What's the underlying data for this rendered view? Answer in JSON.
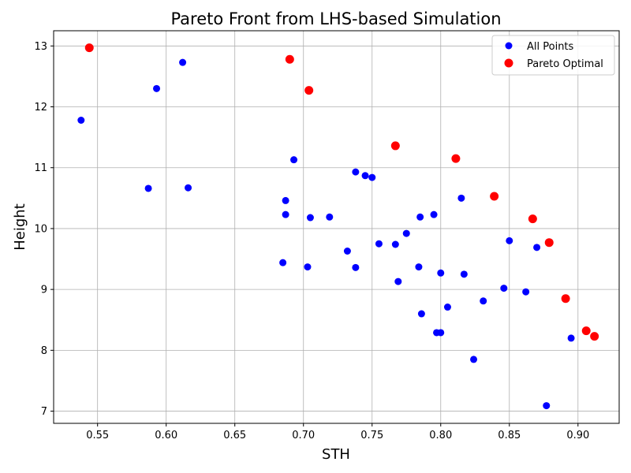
{
  "chart_data": {
    "type": "scatter",
    "title": "Pareto Front from LHS-based Simulation",
    "xlabel": "STH",
    "ylabel": "Height",
    "xlim": [
      0.518,
      0.93
    ],
    "ylim": [
      6.8,
      13.25
    ],
    "xticks": [
      0.55,
      0.6,
      0.65,
      0.7,
      0.75,
      0.8,
      0.85,
      0.9
    ],
    "xtick_labels": [
      "0.55",
      "0.60",
      "0.65",
      "0.70",
      "0.75",
      "0.80",
      "0.85",
      "0.90"
    ],
    "yticks": [
      7,
      8,
      9,
      10,
      11,
      12,
      13
    ],
    "ytick_labels": [
      "7",
      "8",
      "9",
      "10",
      "11",
      "12",
      "13"
    ],
    "grid": true,
    "legend_position": "top-right",
    "series": [
      {
        "name": "All Points",
        "color": "#0000ff",
        "points": [
          [
            0.538,
            11.78
          ],
          [
            0.593,
            12.3
          ],
          [
            0.612,
            12.73
          ],
          [
            0.587,
            10.66
          ],
          [
            0.616,
            10.67
          ],
          [
            0.693,
            11.13
          ],
          [
            0.687,
            10.46
          ],
          [
            0.687,
            10.23
          ],
          [
            0.685,
            9.44
          ],
          [
            0.703,
            9.37
          ],
          [
            0.705,
            10.18
          ],
          [
            0.719,
            10.19
          ],
          [
            0.732,
            9.63
          ],
          [
            0.738,
            9.36
          ],
          [
            0.738,
            10.93
          ],
          [
            0.745,
            10.87
          ],
          [
            0.75,
            10.84
          ],
          [
            0.755,
            9.75
          ],
          [
            0.767,
            9.74
          ],
          [
            0.769,
            9.13
          ],
          [
            0.775,
            9.92
          ],
          [
            0.784,
            9.37
          ],
          [
            0.785,
            10.19
          ],
          [
            0.786,
            8.6
          ],
          [
            0.795,
            10.23
          ],
          [
            0.797,
            8.29
          ],
          [
            0.8,
            9.27
          ],
          [
            0.8,
            8.29
          ],
          [
            0.805,
            8.71
          ],
          [
            0.815,
            10.5
          ],
          [
            0.817,
            9.25
          ],
          [
            0.824,
            7.85
          ],
          [
            0.831,
            8.81
          ],
          [
            0.846,
            9.02
          ],
          [
            0.85,
            9.8
          ],
          [
            0.862,
            8.96
          ],
          [
            0.87,
            9.69
          ],
          [
            0.877,
            7.09
          ],
          [
            0.895,
            8.2
          ]
        ]
      },
      {
        "name": "Pareto Optimal",
        "color": "#ff0000",
        "points": [
          [
            0.544,
            12.97
          ],
          [
            0.69,
            12.78
          ],
          [
            0.704,
            12.27
          ],
          [
            0.767,
            11.36
          ],
          [
            0.811,
            11.15
          ],
          [
            0.839,
            10.53
          ],
          [
            0.867,
            10.16
          ],
          [
            0.879,
            9.77
          ],
          [
            0.891,
            8.85
          ],
          [
            0.906,
            8.32
          ],
          [
            0.912,
            8.23
          ]
        ]
      }
    ]
  }
}
